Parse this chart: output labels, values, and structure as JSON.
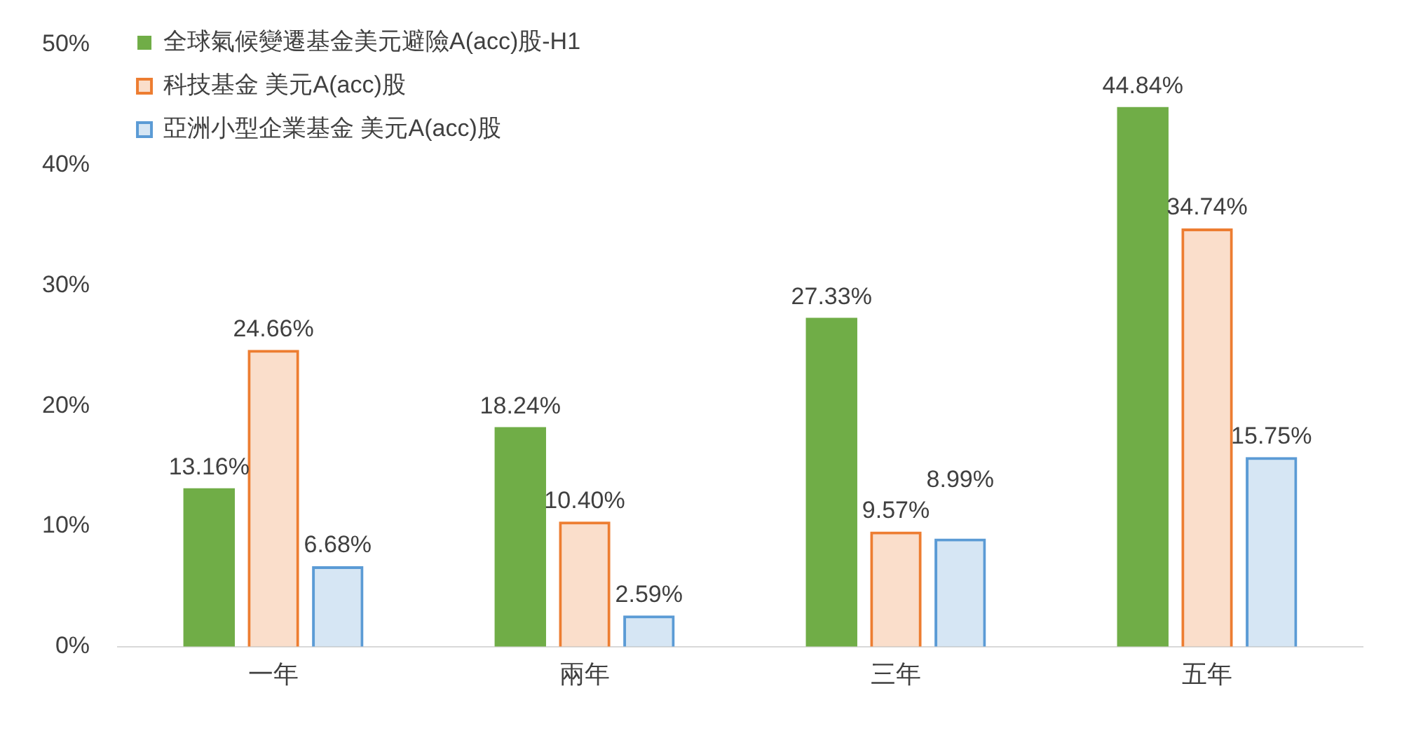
{
  "chart_data": {
    "type": "bar",
    "categories": [
      "一年",
      "兩年",
      "三年",
      "五年"
    ],
    "series": [
      {
        "name": "全球氣候變遷基金美元避險A(acc)股-H1",
        "color": "#70ad47",
        "values": [
          13.16,
          18.24,
          27.33,
          44.84
        ],
        "value_labels": [
          "13.16%",
          "18.24%",
          "27.33%",
          "44.84%"
        ]
      },
      {
        "name": "科技基金 美元A(acc)股",
        "color": "#ed7d31",
        "values": [
          24.66,
          10.4,
          9.57,
          34.74
        ],
        "value_labels": [
          "24.66%",
          "10.40%",
          "9.57%",
          "34.74%"
        ]
      },
      {
        "name": "亞洲小型企業基金 美元A(acc)股",
        "color": "#5b9bd5",
        "values": [
          6.68,
          2.59,
          8.99,
          15.75
        ],
        "value_labels": [
          "6.68%",
          "2.59%",
          "8.99%",
          "15.75%"
        ]
      }
    ],
    "ylim": [
      0,
      50
    ],
    "yticks": [
      {
        "value": 0,
        "label": "0%"
      },
      {
        "value": 10,
        "label": "10%"
      },
      {
        "value": 20,
        "label": "20%"
      },
      {
        "value": 30,
        "label": "30%"
      },
      {
        "value": 40,
        "label": "40%"
      },
      {
        "value": 50,
        "label": "50%"
      }
    ],
    "grid": false,
    "legend": "top left"
  }
}
